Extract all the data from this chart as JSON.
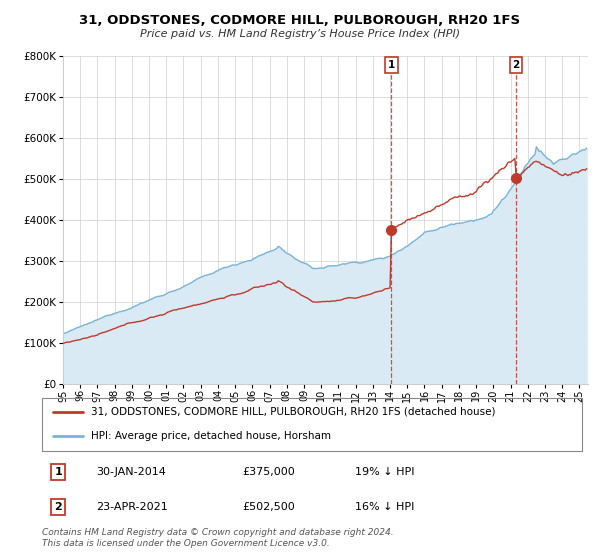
{
  "title": "31, ODDSTONES, CODMORE HILL, PULBOROUGH, RH20 1FS",
  "subtitle": "Price paid vs. HM Land Registry’s House Price Index (HPI)",
  "legend_line1": "31, ODDSTONES, CODMORE HILL, PULBOROUGH, RH20 1FS (detached house)",
  "legend_line2": "HPI: Average price, detached house, Horsham",
  "sale1_date": "30-JAN-2014",
  "sale1_price": "£375,000",
  "sale1_hpi": "19% ↓ HPI",
  "sale2_date": "23-APR-2021",
  "sale2_price": "£502,500",
  "sale2_hpi": "16% ↓ HPI",
  "footer": "Contains HM Land Registry data © Crown copyright and database right 2024.\nThis data is licensed under the Open Government Licence v3.0.",
  "hpi_color": "#7ab4d8",
  "hpi_fill_color": "#daeaf4",
  "price_color": "#c0392b",
  "marker_color": "#c0392b",
  "sale1_year": 2014.08,
  "sale1_price_val": 375000,
  "sale2_year": 2021.31,
  "sale2_price_val": 502500,
  "ylim": [
    0,
    800000
  ],
  "xlim_start": 1995,
  "xlim_end": 2025.5
}
